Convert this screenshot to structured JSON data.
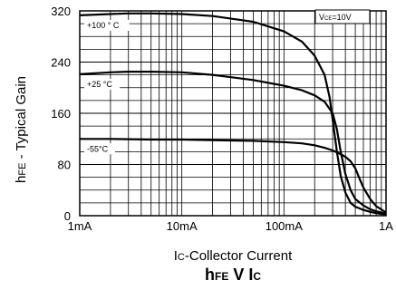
{
  "chart_data": {
    "type": "line",
    "title": {
      "main": "h",
      "sub": "FE",
      "rest": " V I",
      "sub2": "C"
    },
    "xlabel": {
      "main": "I",
      "sub": "C",
      "rest": "-Collector Current"
    },
    "ylabel": {
      "main": "h",
      "sub": "FE",
      "rest": " - Typical Gain"
    },
    "xscale": "log",
    "xlim": [
      0.001,
      1
    ],
    "ylim": [
      0,
      320
    ],
    "x_ticks": [
      {
        "value": 0.001,
        "label": "1mA"
      },
      {
        "value": 0.01,
        "label": "10mA"
      },
      {
        "value": 0.1,
        "label": "100mA"
      },
      {
        "value": 1,
        "label": "1A"
      }
    ],
    "y_ticks": [
      {
        "value": 0,
        "label": "0"
      },
      {
        "value": 80,
        "label": "80"
      },
      {
        "value": 160,
        "label": "160"
      },
      {
        "value": 240,
        "label": "240"
      },
      {
        "value": 320,
        "label": "320"
      }
    ],
    "grid": true,
    "condition": {
      "main": "V",
      "sub": "CE",
      "rest": "=10V"
    },
    "series": [
      {
        "name": "+100 ° C",
        "x": [
          0.001,
          0.002,
          0.003,
          0.005,
          0.01,
          0.02,
          0.05,
          0.1,
          0.15,
          0.2,
          0.25,
          0.28,
          0.3,
          0.33,
          0.36,
          0.4,
          0.45,
          0.5,
          0.6,
          0.7,
          0.8,
          1.0
        ],
        "y": [
          313,
          315,
          316,
          316,
          315,
          312,
          303,
          288,
          272,
          250,
          220,
          185,
          150,
          100,
          62,
          36,
          20,
          14,
          9,
          6,
          4,
          2
        ]
      },
      {
        "name": "+25 °C",
        "x": [
          0.001,
          0.002,
          0.003,
          0.005,
          0.01,
          0.02,
          0.05,
          0.1,
          0.15,
          0.2,
          0.25,
          0.3,
          0.33,
          0.36,
          0.4,
          0.45,
          0.5,
          0.6,
          0.7,
          0.8,
          1.0
        ],
        "y": [
          221,
          224,
          225,
          225,
          224,
          220,
          212,
          203,
          196,
          188,
          178,
          160,
          135,
          100,
          65,
          40,
          26,
          16,
          10,
          7,
          3
        ]
      },
      {
        "name": "-55°C",
        "x": [
          0.001,
          0.002,
          0.005,
          0.01,
          0.02,
          0.05,
          0.1,
          0.15,
          0.2,
          0.25,
          0.3,
          0.35,
          0.4,
          0.45,
          0.5,
          0.55,
          0.6,
          0.7,
          0.8,
          1.0
        ],
        "y": [
          120,
          120,
          119,
          119,
          118,
          117,
          115,
          113,
          110,
          106,
          102,
          97,
          92,
          85,
          74,
          58,
          44,
          26,
          15,
          5
        ]
      }
    ]
  }
}
